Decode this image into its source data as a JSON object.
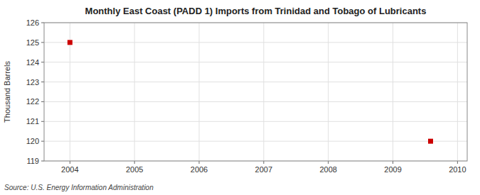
{
  "chart_data": {
    "type": "scatter",
    "title": "Monthly East Coast (PADD 1) Imports from Trinidad and Tobago of Lubricants",
    "ylabel": "Thousand Barrels",
    "annotation": "Source: U.S. Energy Information Administration",
    "x": [
      2004.0,
      2009.583
    ],
    "values": [
      125,
      120
    ],
    "color": "#cc0000",
    "marker": "square",
    "xlim": [
      2003.6,
      2010.15
    ],
    "ylim": [
      119,
      126
    ],
    "xticks": [
      2004,
      2005,
      2006,
      2007,
      2008,
      2009,
      2010
    ],
    "yticks": [
      119,
      120,
      121,
      122,
      123,
      124,
      125,
      126
    ],
    "grid": true
  }
}
